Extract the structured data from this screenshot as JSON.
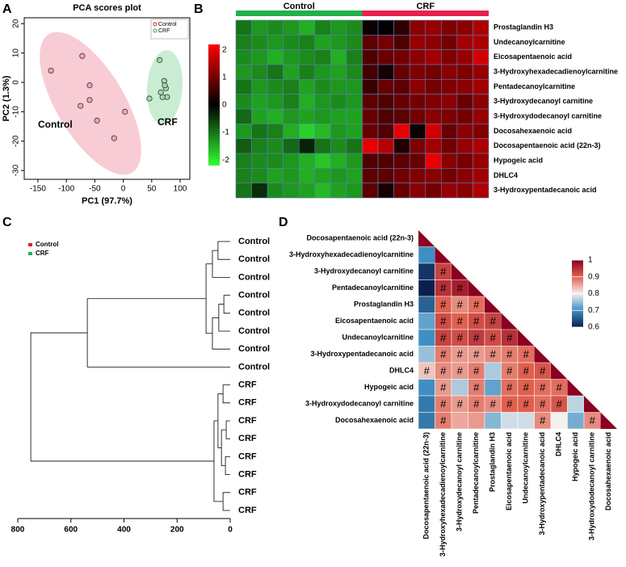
{
  "chart_data": [
    {
      "panel_label": "A",
      "type": "scatter",
      "title": "PCA scores plot",
      "x_label": "PC1 (97.7%)",
      "y_label": "PC2 (1.3%)",
      "xlim": [
        -174,
        117
      ],
      "ylim": [
        -33,
        22
      ],
      "xticks": [
        -150,
        -100,
        -50,
        0,
        50,
        100
      ],
      "yticks": [
        -30,
        -20,
        -10,
        0,
        10,
        20
      ],
      "series": [
        {
          "name": "Control",
          "color": "#f2a3b3",
          "x": [
            -127,
            -72,
            -59,
            -75,
            -59,
            -46,
            -16,
            3
          ],
          "values": [
            4,
            9,
            -1,
            -8,
            -6,
            -13,
            -19,
            -10
          ]
        },
        {
          "name": "CRF",
          "color": "#9fdcae",
          "x": [
            46,
            64,
            72,
            75,
            77,
            69,
            73,
            66
          ],
          "values": [
            -5.5,
            7.6,
            0.5,
            -2,
            -5,
            -5,
            -1,
            -3.4
          ]
        }
      ],
      "annotations": [
        {
          "text": "Control",
          "color": "#e8202a"
        },
        {
          "text": "CRF",
          "color": "#1fa84a"
        }
      ]
    },
    {
      "panel_label": "B",
      "type": "heatmap",
      "groups": [
        {
          "name": "Control",
          "color": "#22b04c",
          "columns": 8
        },
        {
          "name": "CRF",
          "color": "#e8204a",
          "columns": 8
        }
      ],
      "rows": [
        "Prostaglandin H3",
        "Undecanoylcarnitine",
        "Eicosapentaenoic acid",
        "3-Hydroxyhexadecadienoylcarnitine",
        "Pentadecanoylcarnitine",
        "3-Hydroxydecanoyl carnitine",
        "3-Hydroxydodecanoyl carnitine",
        "Docosahexaenoic acid",
        "Docosapentaenoic acid (22n-3)",
        "Hypogeic acid",
        "DHLC4",
        "3-Hydroxypentadecanoic acid"
      ],
      "values": [
        [
          -1.0,
          -1.3,
          -1.2,
          -1.3,
          -1.5,
          -1.1,
          -1.3,
          -1.2,
          0.1,
          0.0,
          0.4,
          1.2,
          1.3,
          1.1,
          1.2,
          1.5
        ],
        [
          -1.1,
          -1.2,
          -1.3,
          -1.2,
          -1.1,
          -1.4,
          -1.3,
          -1.2,
          0.8,
          1.0,
          0.7,
          1.3,
          1.2,
          1.0,
          1.4,
          1.5
        ],
        [
          -1.2,
          -1.3,
          -1.5,
          -1.3,
          -1.2,
          -1.1,
          -1.5,
          -1.1,
          0.7,
          0.9,
          1.0,
          1.2,
          1.4,
          1.1,
          1.3,
          1.8
        ],
        [
          -1.3,
          -1.2,
          -1.0,
          -1.4,
          -1.1,
          -1.3,
          -1.4,
          -1.2,
          0.6,
          0.2,
          0.9,
          1.1,
          1.0,
          1.2,
          1.1,
          1.3
        ],
        [
          -1.0,
          -1.3,
          -1.2,
          -1.1,
          -1.4,
          -1.2,
          -1.3,
          -1.3,
          0.5,
          0.9,
          0.8,
          1.2,
          1.0,
          1.1,
          1.2,
          1.4
        ],
        [
          -1.2,
          -1.4,
          -1.3,
          -1.1,
          -1.5,
          -1.3,
          -1.2,
          -1.3,
          0.8,
          0.7,
          0.9,
          1.0,
          1.1,
          1.2,
          0.9,
          1.2
        ],
        [
          -0.9,
          -1.4,
          -1.5,
          -1.3,
          -1.4,
          -1.3,
          -1.4,
          -1.4,
          0.9,
          0.7,
          0.8,
          1.0,
          1.2,
          1.1,
          1.0,
          1.3
        ],
        [
          -1.3,
          -1.0,
          -1.1,
          -1.5,
          -1.8,
          -1.6,
          -1.3,
          -1.4,
          0.9,
          0.7,
          2.0,
          0.1,
          1.8,
          0.9,
          1.2,
          1.1
        ],
        [
          -0.8,
          -1.1,
          -1.2,
          -0.9,
          -0.3,
          -1.0,
          -1.2,
          -1.0,
          2.0,
          1.6,
          0.3,
          1.1,
          1.4,
          1.0,
          1.3,
          1.5
        ],
        [
          -1.1,
          -1.2,
          -1.2,
          -1.3,
          -1.5,
          -1.7,
          -1.5,
          -1.3,
          0.7,
          0.7,
          0.8,
          0.9,
          2.0,
          1.2,
          1.0,
          1.3
        ],
        [
          -1.1,
          -1.2,
          -1.4,
          -1.3,
          -1.5,
          -1.4,
          -1.3,
          -1.4,
          0.8,
          0.8,
          1.0,
          1.1,
          1.2,
          1.0,
          1.2,
          1.4
        ],
        [
          -1.0,
          -0.4,
          -1.2,
          -1.3,
          -1.4,
          -1.6,
          -1.4,
          -1.3,
          0.8,
          0.2,
          0.9,
          1.2,
          1.0,
          1.3,
          1.2,
          1.5
        ]
      ],
      "clim": [
        -2.2,
        2.2
      ],
      "cticks": [
        2,
        1,
        0,
        -1,
        -2
      ],
      "colors": [
        "#33ff33",
        "#000000",
        "#ff0000"
      ]
    },
    {
      "panel_label": "C",
      "type": "dendrogram",
      "groups": [
        {
          "name": "Control",
          "color": "#ee1c25"
        },
        {
          "name": "CRF",
          "color": "#22b04c"
        }
      ],
      "leaves": [
        "Control",
        "Control",
        "Control",
        "Control",
        "Control",
        "Control",
        "Control",
        "Control",
        "CRF",
        "CRF",
        "CRF",
        "CRF",
        "CRF",
        "CRF",
        "CRF",
        "CRF"
      ],
      "merges": [
        [
          0,
          1,
          46
        ],
        [
          16,
          2,
          67
        ],
        [
          3,
          4,
          24
        ],
        [
          18,
          5,
          43
        ],
        [
          19,
          6,
          67
        ],
        [
          17,
          20,
          91
        ],
        [
          21,
          7,
          538
        ],
        [
          10,
          11,
          15
        ],
        [
          12,
          13,
          18
        ],
        [
          23,
          24,
          33
        ],
        [
          8,
          9,
          27
        ],
        [
          26,
          25,
          46
        ],
        [
          14,
          15,
          27
        ],
        [
          27,
          28,
          61
        ],
        [
          22,
          29,
          751
        ]
      ],
      "xlim": [
        800,
        0
      ],
      "xticks": [
        800,
        600,
        400,
        200,
        0
      ]
    },
    {
      "panel_label": "D",
      "type": "correlation",
      "variables": [
        "Docosapentaenoic acid (22n-3)",
        "3-Hydroxyhexadecadienoylcarnitine",
        "3-Hydroxydecanoyl carnitine",
        "Pentadecanoylcarnitine",
        "Prostaglandin H3",
        "Eicosapentaenoic acid",
        "Undecanoylcarnitine",
        "3-Hydroxypentadecanoic acid",
        "DHLC4",
        "Hypogeic acid",
        "3-Hydroxydodecanoyl carnitine",
        "Docosahexaenoic acid"
      ],
      "values": [
        [
          1
        ],
        [
          0.7,
          1
        ],
        [
          0.62,
          0.93,
          1
        ],
        [
          0.6,
          0.95,
          0.97,
          1
        ],
        [
          0.66,
          0.9,
          0.87,
          0.89,
          1
        ],
        [
          0.72,
          0.92,
          0.9,
          0.92,
          0.93,
          1
        ],
        [
          0.7,
          0.93,
          0.92,
          0.94,
          0.92,
          0.95,
          1
        ],
        [
          0.75,
          0.88,
          0.86,
          0.86,
          0.87,
          0.88,
          0.89,
          1
        ],
        [
          0.83,
          0.87,
          0.86,
          0.88,
          0.76,
          0.88,
          0.9,
          0.91,
          1
        ],
        [
          0.7,
          0.86,
          0.76,
          0.88,
          0.72,
          0.89,
          0.9,
          0.89,
          0.89,
          1
        ],
        [
          0.68,
          0.88,
          0.86,
          0.88,
          0.87,
          0.9,
          0.9,
          0.89,
          0.91,
          0.77,
          1
        ],
        [
          0.68,
          0.88,
          0.85,
          0.86,
          0.74,
          0.78,
          0.78,
          0.87,
          0.8,
          0.73,
          0.87,
          1
        ]
      ],
      "significant": [
        [
          false
        ],
        [
          false,
          false
        ],
        [
          false,
          true,
          false
        ],
        [
          false,
          true,
          true,
          false
        ],
        [
          false,
          true,
          true,
          true,
          false
        ],
        [
          false,
          true,
          true,
          true,
          true,
          false
        ],
        [
          false,
          true,
          true,
          true,
          true,
          true,
          false
        ],
        [
          false,
          true,
          true,
          true,
          true,
          true,
          true,
          false
        ],
        [
          true,
          true,
          true,
          true,
          false,
          true,
          true,
          true,
          false
        ],
        [
          false,
          true,
          false,
          true,
          false,
          true,
          true,
          true,
          true,
          false
        ],
        [
          false,
          true,
          true,
          true,
          true,
          true,
          true,
          true,
          true,
          false,
          false
        ],
        [
          false,
          true,
          false,
          false,
          false,
          false,
          false,
          true,
          false,
          false,
          true,
          false
        ]
      ],
      "sig_label": "#",
      "clim": [
        0.6,
        1
      ],
      "cticks": [
        1,
        0.9,
        0.8,
        0.7,
        0.6
      ],
      "colors": [
        "#0b1f4e",
        "#3f8fc4",
        "#f5f0ee",
        "#e0604f",
        "#8b0020"
      ]
    }
  ]
}
